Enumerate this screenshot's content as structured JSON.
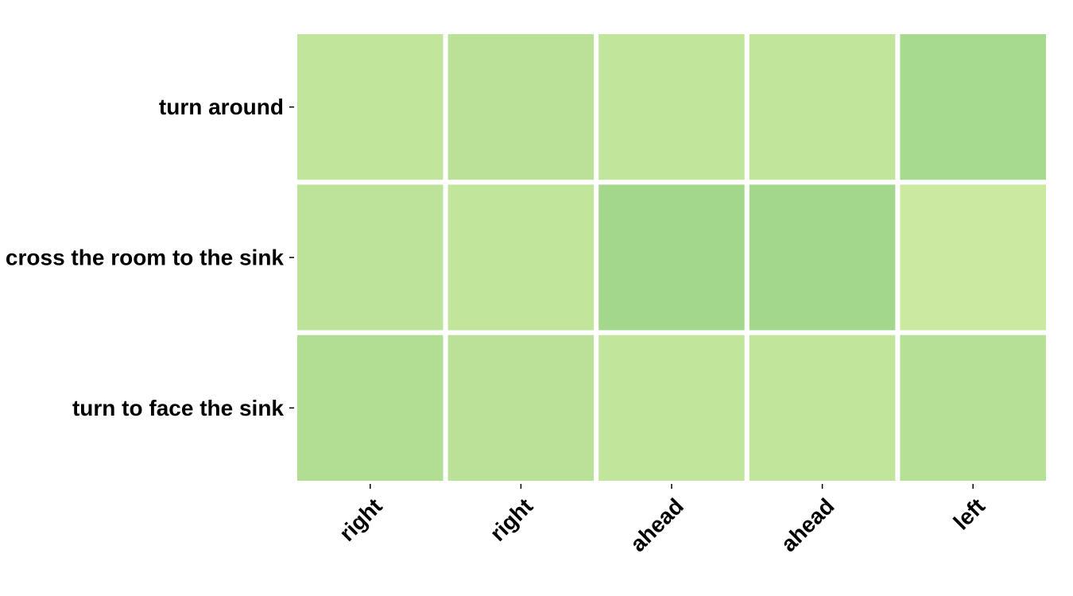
{
  "chart_data": {
    "type": "heatmap",
    "title": "",
    "xlabel": "",
    "ylabel": "",
    "x_categories": [
      "right",
      "right",
      "ahead",
      "ahead",
      "left"
    ],
    "y_categories": [
      "turn around",
      "cross the room to the sink",
      "turn to face the sink"
    ],
    "values": [
      [
        0.1,
        0.14,
        0.1,
        0.1,
        0.24
      ],
      [
        0.12,
        0.1,
        0.26,
        0.26,
        0.04
      ],
      [
        0.18,
        0.14,
        0.1,
        0.1,
        0.16
      ]
    ],
    "color_scale": {
      "low": "#cbeaa0",
      "high": "#a3d78c"
    },
    "grid": false,
    "legend": "none"
  }
}
